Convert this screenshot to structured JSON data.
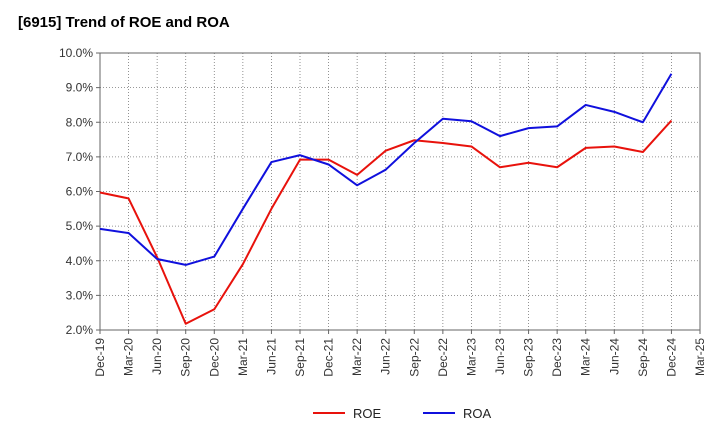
{
  "chart_data": {
    "type": "line",
    "title": "[6915]  Trend of ROE and ROA",
    "xlabel": "",
    "ylabel": "",
    "ylim": [
      2.0,
      10.0
    ],
    "y_ticks": [
      "2.0%",
      "3.0%",
      "4.0%",
      "5.0%",
      "6.0%",
      "7.0%",
      "8.0%",
      "9.0%",
      "10.0%"
    ],
    "x": [
      "Dec-19",
      "Mar-20",
      "Jun-20",
      "Sep-20",
      "Dec-20",
      "Mar-21",
      "Jun-21",
      "Sep-21",
      "Dec-21",
      "Mar-22",
      "Jun-22",
      "Sep-22",
      "Dec-22",
      "Mar-23",
      "Jun-23",
      "Sep-23",
      "Dec-23",
      "Mar-24",
      "Jun-24",
      "Sep-24",
      "Dec-24",
      "Mar-25"
    ],
    "grid": true,
    "legend_position": "bottom-center",
    "series": [
      {
        "name": "ROE",
        "color": "#e8120c",
        "values": [
          5.97,
          5.8,
          4.1,
          2.18,
          2.6,
          3.9,
          5.5,
          6.92,
          6.92,
          6.48,
          7.18,
          7.48,
          7.4,
          7.3,
          6.7,
          6.83,
          6.7,
          7.26,
          7.3,
          7.14,
          8.05,
          null
        ]
      },
      {
        "name": "ROA",
        "color": "#1010dd",
        "values": [
          4.92,
          4.8,
          4.05,
          3.88,
          4.12,
          5.5,
          6.85,
          7.05,
          6.78,
          6.18,
          6.63,
          7.4,
          8.1,
          8.03,
          7.6,
          7.83,
          7.88,
          8.5,
          8.3,
          8.0,
          9.4,
          null
        ]
      }
    ]
  }
}
